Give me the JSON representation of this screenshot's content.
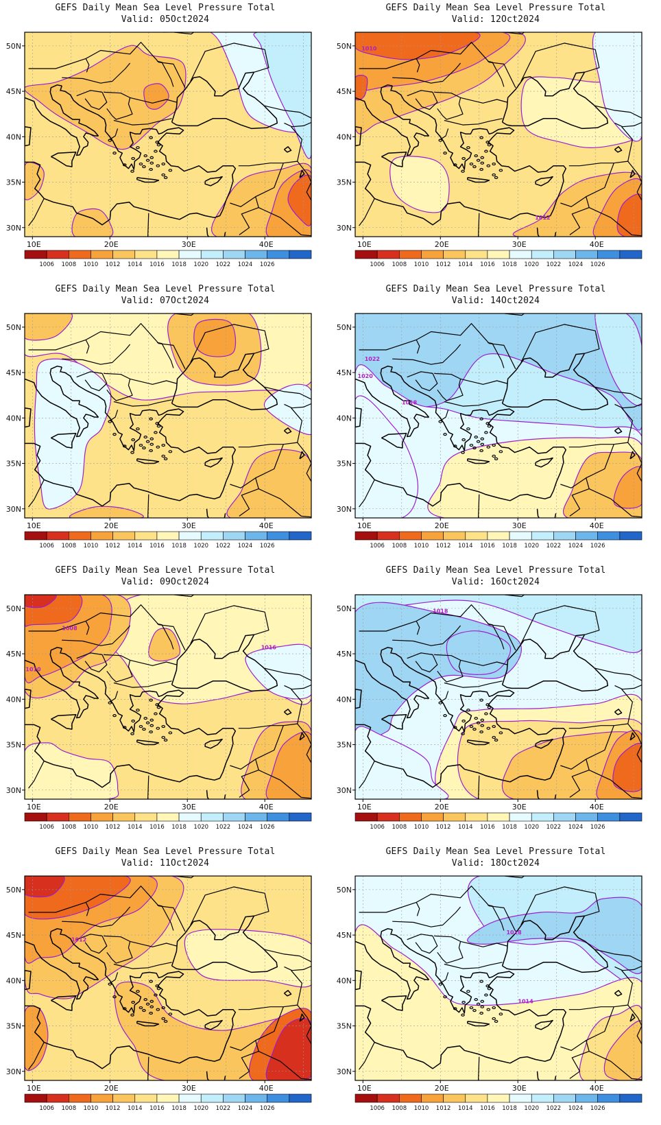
{
  "figure": {
    "title_prefix": "GEFS Daily Mean Sea Level Pressure Total",
    "lat_labels": [
      "50N",
      "45N",
      "40N",
      "35N",
      "30N"
    ],
    "lon_labels": [
      "10E",
      "20E",
      "30E",
      "40E"
    ],
    "colorbar": {
      "labels": [
        "1006",
        "1008",
        "1010",
        "1012",
        "1014",
        "1016",
        "1018",
        "1020",
        "1022",
        "1024",
        "1026"
      ],
      "colors": [
        "#a50f0f",
        "#d7301f",
        "#f06a1e",
        "#f7a23a",
        "#fbc55e",
        "#fde289",
        "#fff6b8",
        "#e6fbff",
        "#c3eefb",
        "#9fd6f4",
        "#6cb6ec",
        "#3f8fe0",
        "#2166c8"
      ]
    }
  },
  "panels": [
    {
      "id": "p05",
      "title": "GEFS Daily Mean Sea Level Pressure Total",
      "valid": "Valid: 05Oct2024",
      "iso_labels": []
    },
    {
      "id": "p12",
      "title": "GEFS Daily Mean Sea Level Pressure Total",
      "valid": "Valid: 12Oct2024",
      "iso_labels": [
        "1010",
        "1012"
      ]
    },
    {
      "id": "p07",
      "title": "GEFS Daily Mean Sea Level Pressure Total",
      "valid": "Valid: 07Oct2024",
      "iso_labels": []
    },
    {
      "id": "p14",
      "title": "GEFS Daily Mean Sea Level Pressure Total",
      "valid": "Valid: 14Oct2024",
      "iso_labels": [
        "1022",
        "1020",
        "1018"
      ]
    },
    {
      "id": "p09",
      "title": "GEFS Daily Mean Sea Level Pressure Total",
      "valid": "Valid: 09Oct2024",
      "iso_labels": [
        "1008",
        "1010",
        "1016"
      ]
    },
    {
      "id": "p16",
      "title": "GEFS Daily Mean Sea Level Pressure Total",
      "valid": "Valid: 16Oct2024",
      "iso_labels": [
        "1018"
      ]
    },
    {
      "id": "p11",
      "title": "GEFS Daily Mean Sea Level Pressure Total",
      "valid": "Valid: 11Oct2024",
      "iso_labels": [
        "1012"
      ]
    },
    {
      "id": "p18",
      "title": "GEFS Daily Mean Sea Level Pressure Total",
      "valid": "Valid: 18Oct2024",
      "iso_labels": [
        "1018",
        "1014"
      ]
    }
  ]
}
